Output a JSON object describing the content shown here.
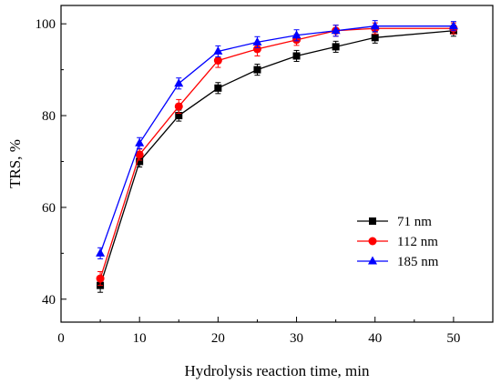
{
  "chart_data": {
    "type": "line",
    "title": "",
    "xlabel": "Hydrolysis reaction time, min",
    "ylabel": "TRS, %",
    "xlim": [
      0,
      55
    ],
    "ylim": [
      35,
      104
    ],
    "xticks": [
      0,
      10,
      20,
      30,
      40,
      50
    ],
    "yticks": [
      40,
      60,
      80,
      100
    ],
    "grid": false,
    "legend_position": "right-middle",
    "x": [
      5,
      10,
      15,
      20,
      25,
      30,
      35,
      40,
      50
    ],
    "series": [
      {
        "name": "71 nm",
        "color": "#000000",
        "marker": "square",
        "values": [
          43,
          70,
          80,
          86,
          90,
          93,
          95,
          97,
          98.5
        ],
        "errors": [
          1.5,
          1.2,
          1.2,
          1.2,
          1.2,
          1.2,
          1.2,
          1.2,
          1.2
        ]
      },
      {
        "name": "112 nm",
        "color": "#ff0000",
        "marker": "circle",
        "values": [
          44.5,
          71.5,
          82,
          92,
          94.5,
          96.5,
          98.5,
          99,
          99
        ],
        "errors": [
          1.5,
          1.2,
          1.5,
          1.5,
          1.5,
          1.2,
          1.2,
          1.2,
          1.2
        ]
      },
      {
        "name": "185 nm",
        "color": "#0000ff",
        "marker": "triangle",
        "values": [
          50,
          74,
          87,
          94,
          96,
          97.5,
          98.5,
          99.5,
          99.5
        ],
        "errors": [
          1.2,
          1.2,
          1.2,
          1.2,
          1.2,
          1.2,
          1.2,
          1.2,
          1.0
        ]
      }
    ]
  }
}
